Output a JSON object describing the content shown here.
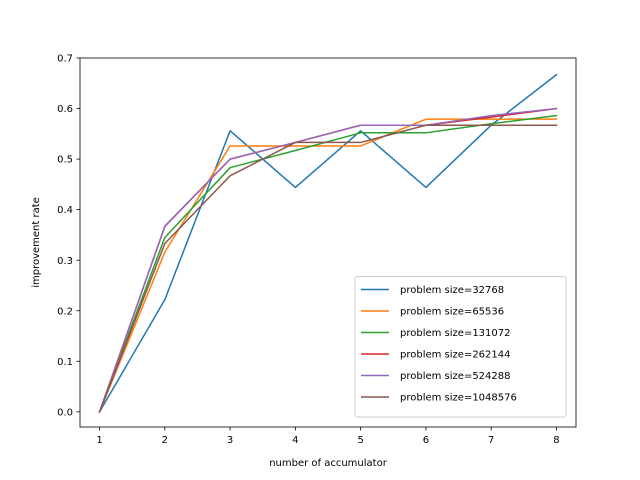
{
  "chart_data": {
    "type": "line",
    "title": "",
    "xlabel": "number of accumulator",
    "ylabel": "improvement rate",
    "x": [
      1,
      2,
      3,
      4,
      5,
      6,
      7,
      8
    ],
    "xlim": [
      0.7,
      8.3
    ],
    "ylim": [
      -0.03,
      0.7
    ],
    "xticks": [
      1,
      2,
      3,
      4,
      5,
      6,
      7,
      8
    ],
    "yticks": [
      0.0,
      0.1,
      0.2,
      0.3,
      0.4,
      0.5,
      0.6,
      0.7
    ],
    "ytick_labels": [
      "0.0",
      "0.1",
      "0.2",
      "0.3",
      "0.4",
      "0.5",
      "0.6",
      "0.7"
    ],
    "grid": false,
    "legend_position": "lower-right",
    "series": [
      {
        "name": "problem size=32768",
        "color": "#1f77b4",
        "values": [
          0.0,
          0.222,
          0.556,
          0.444,
          0.556,
          0.444,
          0.567,
          0.667
        ]
      },
      {
        "name": "problem size=65536",
        "color": "#ff7f0e",
        "values": [
          0.0,
          0.316,
          0.526,
          0.526,
          0.526,
          0.579,
          0.579,
          0.579
        ]
      },
      {
        "name": "problem size=131072",
        "color": "#2ca02c",
        "values": [
          0.0,
          0.345,
          0.483,
          0.517,
          0.552,
          0.552,
          0.57,
          0.586
        ]
      },
      {
        "name": "problem size=262144",
        "color": "#d62728",
        "values": [
          0.0,
          0.367,
          0.5,
          0.533,
          0.567,
          0.567,
          0.583,
          0.6
        ]
      },
      {
        "name": "problem size=524288",
        "color": "#9467bd",
        "values": [
          0.0,
          0.367,
          0.5,
          0.533,
          0.567,
          0.567,
          0.586,
          0.6
        ]
      },
      {
        "name": "problem size=1048576",
        "color": "#8c564b",
        "values": [
          0.0,
          0.333,
          0.467,
          0.533,
          0.533,
          0.567,
          0.567,
          0.567
        ]
      }
    ]
  }
}
